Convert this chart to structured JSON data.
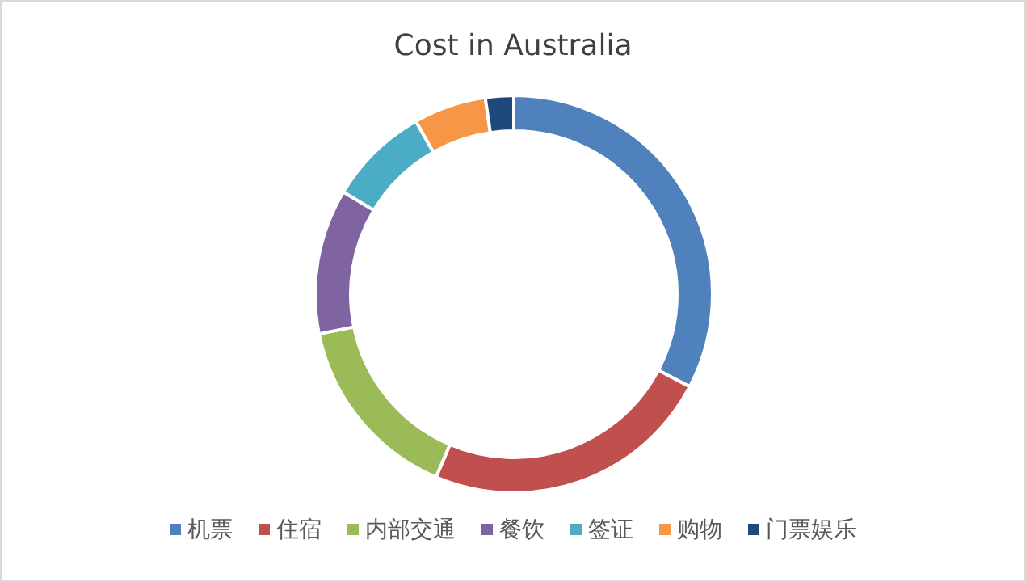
{
  "chart_data": {
    "type": "donut",
    "title": "Cost in Australia",
    "categories": [
      "机票",
      "住宿",
      "内部交通",
      "餐饮",
      "签证",
      "购物",
      "门票娱乐"
    ],
    "values": [
      32.7,
      23.7,
      15.4,
      11.8,
      8.2,
      5.9,
      2.3
    ],
    "colors": [
      "#4f81bd",
      "#c0504d",
      "#9bbb59",
      "#8064a2",
      "#4bacc6",
      "#f79646",
      "#1f497d"
    ],
    "legend": "bottom"
  }
}
